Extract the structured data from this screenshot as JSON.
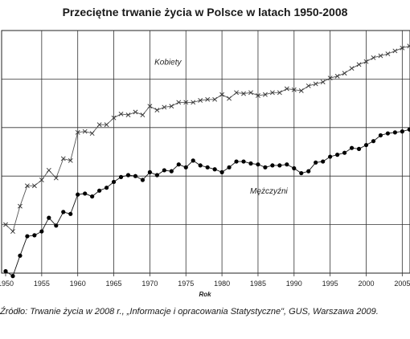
{
  "chart_data": {
    "type": "line",
    "title": "Przeciętne trwanie życia w Polsce w latach 1950-2008",
    "xlabel": "Rok",
    "ylabel": "",
    "xlim": [
      1950,
      2008
    ],
    "ylim": [
      56,
      81
    ],
    "grid": true,
    "xticks": [
      "1950",
      "1955",
      "1960",
      "1965",
      "1970",
      "1975",
      "1980",
      "1985",
      "1990",
      "1995",
      "2000",
      "2005"
    ],
    "x": [
      1950,
      1951,
      1952,
      1953,
      1954,
      1955,
      1956,
      1957,
      1958,
      1959,
      1960,
      1961,
      1962,
      1963,
      1964,
      1965,
      1966,
      1967,
      1968,
      1969,
      1970,
      1971,
      1972,
      1973,
      1974,
      1975,
      1976,
      1977,
      1978,
      1979,
      1980,
      1981,
      1982,
      1983,
      1984,
      1985,
      1986,
      1987,
      1988,
      1989,
      1990,
      1991,
      1992,
      1993,
      1994,
      1995,
      1996,
      1997,
      1998,
      1999,
      2000,
      2001,
      2002,
      2003,
      2004,
      2005,
      2006,
      2007,
      2008
    ],
    "series": [
      {
        "name": "Kobiety",
        "marker": "x",
        "values": [
          61.0,
          60.3,
          62.9,
          65.0,
          65.0,
          65.6,
          66.6,
          65.8,
          67.8,
          67.6,
          70.5,
          70.6,
          70.4,
          71.3,
          71.3,
          72.0,
          72.4,
          72.3,
          72.6,
          72.3,
          73.2,
          72.8,
          73.1,
          73.2,
          73.6,
          73.6,
          73.6,
          73.8,
          73.9,
          73.9,
          74.4,
          74.0,
          74.6,
          74.5,
          74.6,
          74.3,
          74.4,
          74.6,
          74.6,
          75.0,
          74.9,
          74.8,
          75.3,
          75.5,
          75.7,
          76.1,
          76.3,
          76.6,
          77.1,
          77.5,
          77.8,
          78.2,
          78.4,
          78.6,
          78.9,
          79.2,
          79.4,
          79.6,
          79.9
        ]
      },
      {
        "name": "Mężczyźni",
        "marker": "dot",
        "values": [
          56.2,
          55.7,
          57.8,
          59.8,
          59.9,
          60.3,
          61.7,
          60.9,
          62.3,
          62.1,
          64.1,
          64.2,
          63.9,
          64.5,
          64.8,
          65.4,
          65.9,
          66.1,
          66.0,
          65.6,
          66.4,
          66.1,
          66.6,
          66.5,
          67.2,
          66.9,
          67.6,
          67.1,
          66.9,
          66.7,
          66.4,
          66.9,
          67.5,
          67.5,
          67.3,
          67.2,
          66.9,
          67.1,
          67.1,
          67.2,
          66.8,
          66.3,
          66.5,
          67.4,
          67.5,
          68.0,
          68.2,
          68.4,
          68.9,
          68.8,
          69.2,
          69.6,
          70.2,
          70.4,
          70.5,
          70.6,
          70.8,
          70.9,
          71.0
        ]
      }
    ],
    "annotations": [
      {
        "text": "Kobiety",
        "x": 1972.5,
        "y": 77.5
      },
      {
        "text": "Mężczyźni",
        "x": 1986.5,
        "y": 64.2
      }
    ],
    "source": "Źródło: Trwanie życia w 2008 r., „Informacje i opracowania Statystyczne\", GUS, Warszawa 2009."
  }
}
